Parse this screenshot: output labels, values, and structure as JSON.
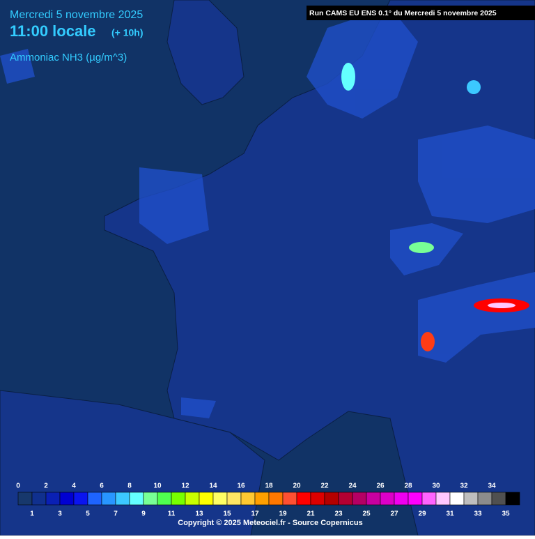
{
  "header": {
    "date": "Mercredi 5 novembre 2025",
    "time": "11:00 locale",
    "offset": "(+ 10h)",
    "variable": "Ammoniac NH3 (µg/m^3)"
  },
  "run_info": "Run CAMS EU ENS 0.1° du Mercredi 5 novembre 2025",
  "legend": {
    "labels": [
      0,
      1,
      2,
      3,
      4,
      5,
      6,
      7,
      8,
      9,
      10,
      11,
      12,
      13,
      14,
      15,
      16,
      17,
      18,
      19,
      20,
      21,
      22,
      23,
      24,
      25,
      26,
      27,
      28,
      29,
      30,
      31,
      32,
      33,
      34,
      35
    ],
    "colors": [
      "#17386c",
      "#10308e",
      "#0a20b4",
      "#0000d2",
      "#0a14f0",
      "#1e64ff",
      "#2896ff",
      "#3cc8ff",
      "#64ffff",
      "#78ff96",
      "#50ff50",
      "#78ff00",
      "#c8ff00",
      "#ffff00",
      "#ffff64",
      "#ffe664",
      "#ffc832",
      "#ffa000",
      "#ff7800",
      "#ff5032",
      "#ff0000",
      "#dc0000",
      "#b40000",
      "#b40032",
      "#b40064",
      "#c800a0",
      "#dc00c8",
      "#f000f0",
      "#ff00ff",
      "#ff64ff",
      "#ffc8ff",
      "#ffffff",
      "#bebebe",
      "#8c8c8c",
      "#505050",
      "#000000"
    ]
  },
  "copyright": "Copyright © 2025 Meteociel.fr - Source Copernicus"
}
